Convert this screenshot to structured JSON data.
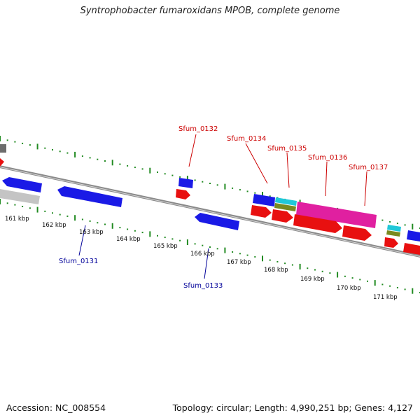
{
  "title": "Syntrophobacter fumaroxidans MPOB, complete genome",
  "footer": {
    "accession": "Accession: NC_008554",
    "summary": "Topology: circular; Length: 4,990,251 bp; Genes: 4,127"
  },
  "colors": {
    "backbone": "#8a8a8a",
    "tick_green": "#228b22",
    "gene_blue": "#1a1ae6",
    "gene_red": "#e81010",
    "gene_magenta": "#e020a0",
    "gene_cyan": "#20c8d8",
    "gene_olive": "#7a8a20",
    "gene_gray": "#b8b8b8",
    "label_top": "#cc0000",
    "label_bottom": "#000099"
  },
  "ticks": [
    "161 kbp",
    "162 kbp",
    "163 kbp",
    "164 kbp",
    "165 kbp",
    "166 kbp",
    "167 kbp",
    "168 kbp",
    "169 kbp",
    "170 kbp",
    "171 kbp"
  ],
  "gene_labels_top": [
    "Sfum_0132",
    "Sfum_0134",
    "Sfum_0135",
    "Sfum_0136",
    "Sfum_0137"
  ],
  "gene_labels_bottom": [
    "Sfum_0131",
    "Sfum_0133"
  ]
}
